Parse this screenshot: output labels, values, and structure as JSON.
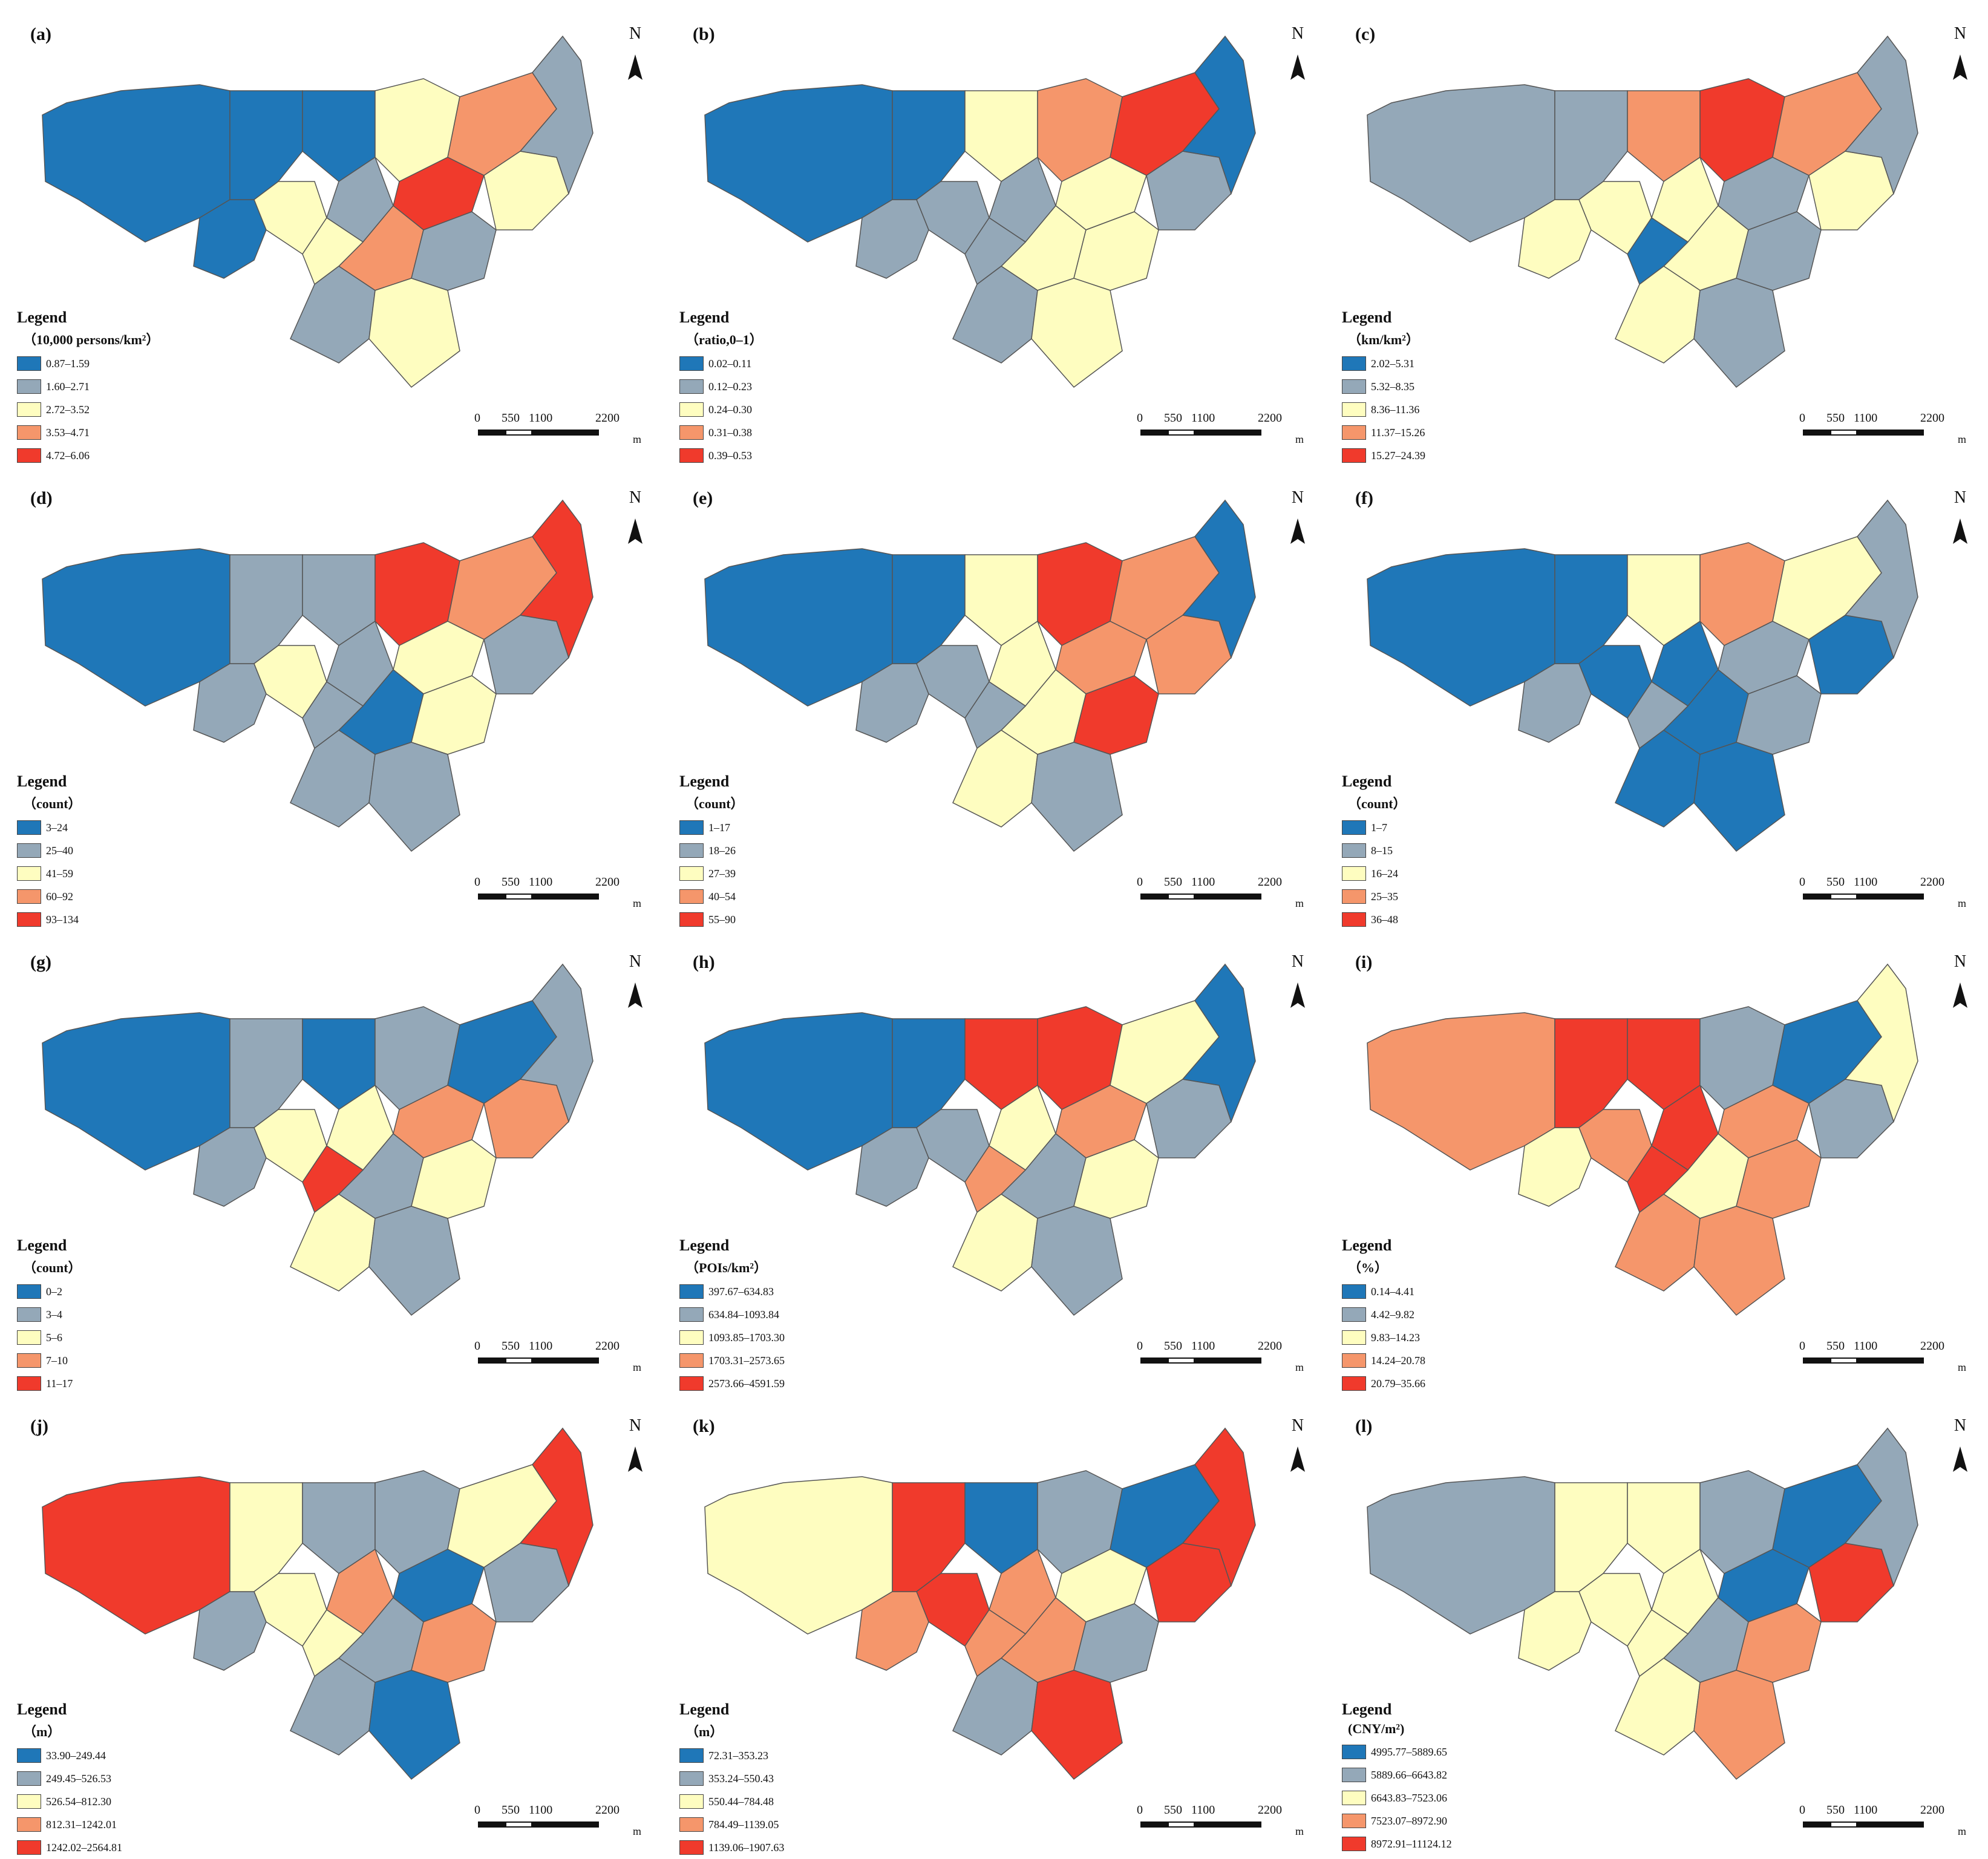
{
  "colors": {
    "class1": "#1f77b8",
    "class2": "#94a8b8",
    "class3": "#fefdc0",
    "class4": "#f5966b",
    "class5": "#f03a2c",
    "border": "#555555"
  },
  "legend_title": "Legend",
  "north_label": "N",
  "scale_bar": {
    "ticks": [
      "0",
      "550",
      "1100",
      "2200"
    ],
    "unit": "m"
  },
  "panels": [
    {
      "id": "(a)",
      "unit": "（10,000 persons/km²）",
      "classes": [
        "0.87–1.59",
        "1.60–2.71",
        "2.72–3.52",
        "3.53–4.71",
        "4.72–6.06"
      ]
    },
    {
      "id": "(b)",
      "unit": "（ratio,0–1）",
      "classes": [
        "0.02–0.11",
        "0.12–0.23",
        "0.24–0.30",
        "0.31–0.38",
        "0.39–0.53"
      ]
    },
    {
      "id": "(c)",
      "unit": "（km/km²）",
      "classes": [
        "2.02–5.31",
        "5.32–8.35",
        "8.36–11.36",
        "11.37–15.26",
        "15.27–24.39"
      ]
    },
    {
      "id": "(d)",
      "unit": "（count）",
      "classes": [
        "3–24",
        "25–40",
        "41–59",
        "60–92",
        "93–134"
      ]
    },
    {
      "id": "(e)",
      "unit": "（count）",
      "classes": [
        "1–17",
        "18–26",
        "27–39",
        "40–54",
        "55–90"
      ]
    },
    {
      "id": "(f)",
      "unit": "（count）",
      "classes": [
        "1–7",
        "8–15",
        "16–24",
        "25–35",
        "36–48"
      ]
    },
    {
      "id": "(g)",
      "unit": "（count）",
      "classes": [
        "0–2",
        "3–4",
        "5–6",
        "7–10",
        "11–17"
      ]
    },
    {
      "id": "(h)",
      "unit": "（POIs/km²）",
      "classes": [
        "397.67–634.83",
        "634.84–1093.84",
        "1093.85–1703.30",
        "1703.31–2573.65",
        "2573.66–4591.59"
      ]
    },
    {
      "id": "(i)",
      "unit": "（%）",
      "classes": [
        "0.14–4.41",
        "4.42–9.82",
        "9.83–14.23",
        "14.24–20.78",
        "20.79–35.66"
      ]
    },
    {
      "id": "(j)",
      "unit": "（m）",
      "classes": [
        "33.90–249.44",
        "249.45–526.53",
        "526.54–812.30",
        "812.31–1242.01",
        "1242.02–2564.81"
      ]
    },
    {
      "id": "(k)",
      "unit": "（m）",
      "classes": [
        "72.31–353.23",
        "353.24–550.43",
        "550.44–784.48",
        "784.49–1139.05",
        "1139.06–1907.63"
      ]
    },
    {
      "id": "(l)",
      "unit": "(CNY/m²)",
      "classes": [
        "4995.77–5889.65",
        "5889.66–6643.82",
        "6643.83–7523.06",
        "7523.07–8972.90",
        "8972.91–11124.12"
      ]
    }
  ],
  "region_classes": [
    [
      1,
      1,
      1,
      3,
      1,
      2,
      3,
      4,
      5,
      4,
      3,
      2,
      3,
      2,
      2,
      3
    ],
    [
      1,
      2,
      1,
      2,
      3,
      2,
      4,
      5,
      3,
      3,
      2,
      3,
      2,
      1,
      2,
      3
    ],
    [
      2,
      3,
      2,
      3,
      4,
      3,
      5,
      4,
      2,
      3,
      1,
      2,
      3,
      2,
      3,
      2
    ],
    [
      1,
      2,
      2,
      3,
      2,
      2,
      5,
      4,
      3,
      1,
      2,
      3,
      2,
      5,
      2,
      2
    ],
    [
      1,
      2,
      1,
      2,
      3,
      3,
      5,
      4,
      4,
      3,
      2,
      5,
      4,
      1,
      3,
      2
    ],
    [
      1,
      2,
      1,
      1,
      3,
      1,
      4,
      3,
      2,
      1,
      2,
      2,
      1,
      2,
      1,
      1
    ],
    [
      1,
      2,
      2,
      3,
      1,
      3,
      2,
      1,
      4,
      2,
      5,
      3,
      4,
      2,
      3,
      2
    ],
    [
      1,
      2,
      1,
      2,
      5,
      3,
      5,
      3,
      4,
      2,
      4,
      3,
      2,
      1,
      3,
      2
    ],
    [
      4,
      3,
      5,
      4,
      5,
      5,
      2,
      1,
      4,
      3,
      5,
      4,
      2,
      3,
      4,
      4
    ],
    [
      5,
      2,
      3,
      3,
      2,
      4,
      2,
      3,
      1,
      2,
      3,
      4,
      2,
      5,
      2,
      1
    ],
    [
      3,
      4,
      5,
      5,
      1,
      4,
      2,
      1,
      3,
      4,
      4,
      2,
      5,
      5,
      2,
      5
    ],
    [
      2,
      3,
      3,
      3,
      3,
      3,
      2,
      1,
      1,
      2,
      3,
      4,
      5,
      2,
      3,
      4
    ]
  ]
}
